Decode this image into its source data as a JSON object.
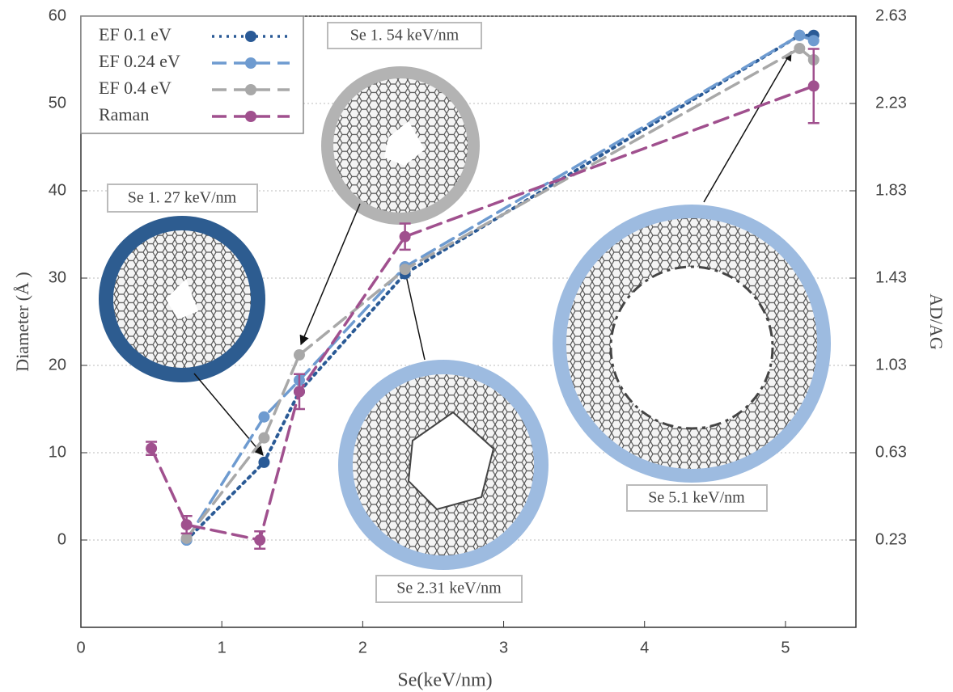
{
  "chart_data": {
    "type": "line",
    "x_label": "Se(keV/nm)",
    "y_label": "Diameter (Å )",
    "y2_label": "AD/AG",
    "xlim": [
      0,
      5.5
    ],
    "xticks": [
      0,
      1,
      2,
      3,
      4,
      5
    ],
    "ylim": [
      -10,
      60
    ],
    "yticks": [
      0,
      10,
      20,
      30,
      40,
      50,
      60
    ],
    "y2lim": [
      -0.17,
      2.63
    ],
    "y2ticks": [
      0.23,
      0.63,
      1.03,
      1.43,
      1.83,
      2.23,
      2.63
    ],
    "grid": true,
    "legend": "upper left",
    "series": [
      {
        "name": "EF 0.1 eV",
        "color": "#2a5a96",
        "dash": "dotted",
        "x": [
          0.75,
          1.3,
          1.55,
          2.3,
          5.1,
          5.2
        ],
        "values": [
          0,
          8.9,
          17,
          30.5,
          57.8,
          57.8
        ]
      },
      {
        "name": "EF 0.24 eV",
        "color": "#6e9bd0",
        "dash": "dashed",
        "x": [
          0.75,
          1.3,
          1.55,
          2.3,
          5.1,
          5.2
        ],
        "values": [
          0,
          14.1,
          18.3,
          31.3,
          57.8,
          57.2
        ]
      },
      {
        "name": "EF 0.4 eV",
        "color": "#a8a8a8",
        "dash": "dashed",
        "x": [
          0.75,
          1.3,
          1.55,
          2.3,
          5.1,
          5.2
        ],
        "values": [
          0.2,
          11.7,
          21.2,
          31,
          56.3,
          55
        ]
      },
      {
        "name": "Raman",
        "color": "#a0508e",
        "dash": "dashed",
        "axis": "y2",
        "x": [
          0.5,
          0.75,
          1.27,
          1.55,
          2.3,
          5.2
        ],
        "values": [
          0.65,
          0.3,
          0.23,
          0.91,
          1.62,
          2.31
        ],
        "errors": [
          0.03,
          0.04,
          0.04,
          0.08,
          0.06,
          0.17
        ]
      }
    ],
    "annotations": [
      "Se 1. 27 keV/nm",
      "Se 1. 54 keV/nm",
      "Se 2.31 keV/nm",
      "Se 5.1 keV/nm"
    ]
  }
}
